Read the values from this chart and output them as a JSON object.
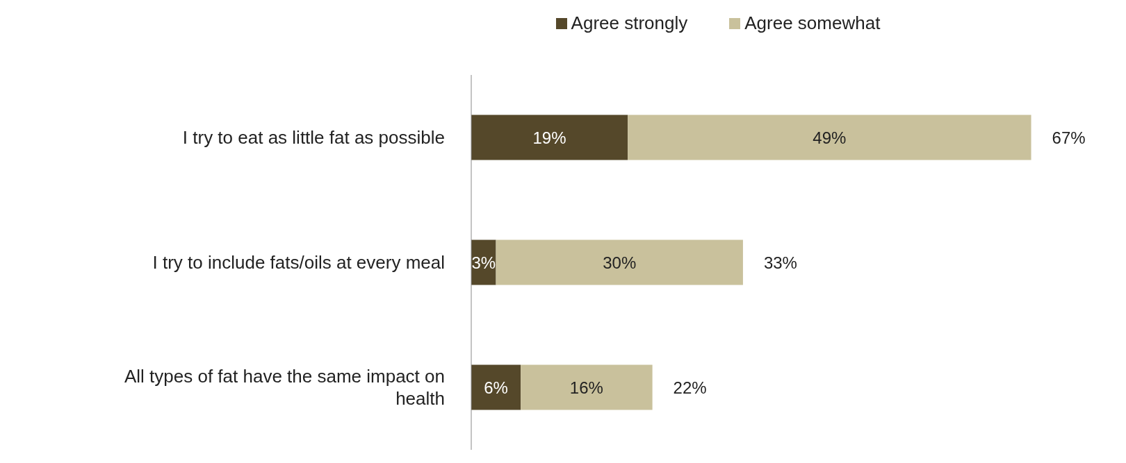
{
  "chart_data": {
    "type": "bar",
    "orientation": "horizontal",
    "stacked": true,
    "legend": "top",
    "categories": [
      "I try to eat as little fat as possible",
      "I try to include fats/oils at every meal",
      "All types of fat have the same impact on health"
    ],
    "series": [
      {
        "name": "Agree strongly",
        "color": "#55482a",
        "values": [
          19,
          3,
          6
        ],
        "value_labels": [
          "19%",
          "3%",
          "6%"
        ]
      },
      {
        "name": "Agree somewhat",
        "color": "#c9c19c",
        "values": [
          49,
          30,
          16
        ],
        "value_labels": [
          "49%",
          "30%",
          "16%"
        ]
      }
    ],
    "totals": [
      "67%",
      "33%",
      "22%"
    ]
  }
}
